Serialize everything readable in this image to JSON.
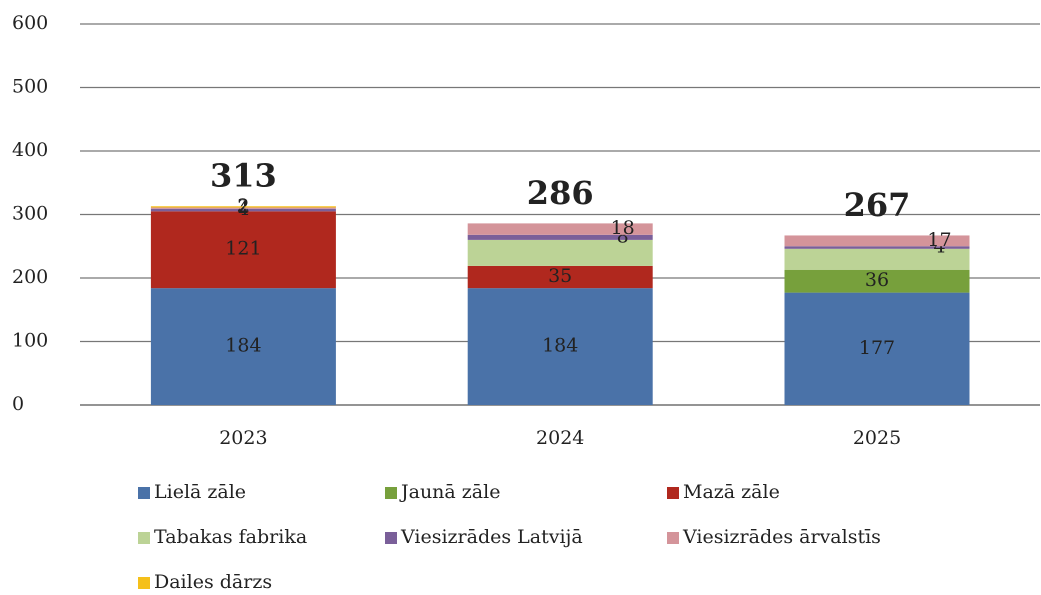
{
  "chart_data": {
    "type": "stacked_bar",
    "categories": [
      "2023",
      "2024",
      "2025"
    ],
    "totals": [
      313,
      286,
      267
    ],
    "series": [
      {
        "name": "Lielā zāle",
        "color": "#4a72a8",
        "values": [
          184,
          184,
          177
        ],
        "value_labels": [
          "184",
          "184",
          "177"
        ]
      },
      {
        "name": "Jaunā zāle",
        "color": "#77a03c",
        "values": [
          0,
          0,
          36
        ],
        "value_labels": [
          null,
          null,
          "36"
        ]
      },
      {
        "name": "Mazā zāle",
        "color": "#b0281e",
        "values": [
          121,
          35,
          0
        ],
        "value_labels": [
          "121",
          "35",
          null
        ]
      },
      {
        "name": "Tabakas fabrika",
        "color": "#bcd396",
        "values": [
          0,
          41,
          33
        ],
        "value_labels": [
          null,
          null,
          null
        ]
      },
      {
        "name": "Viesizrādes Latvijā",
        "color": "#7a5f99",
        "values": [
          4,
          8,
          4
        ],
        "value_labels": [
          "4",
          "8",
          "4"
        ]
      },
      {
        "name": "Viesizrādes ārvalstīs",
        "color": "#d4949a",
        "values": [
          2,
          18,
          17
        ],
        "value_labels": [
          "2",
          "18",
          "17"
        ]
      },
      {
        "name": "Dailes dārzs",
        "color": "#f5c01a",
        "values": [
          2,
          0,
          0
        ],
        "value_labels": [
          "2",
          null,
          null
        ]
      }
    ],
    "ylim": [
      0,
      600
    ],
    "yticks": [
      0,
      100,
      200,
      300,
      400,
      500,
      600
    ],
    "grid": true,
    "legend": "bottom"
  }
}
